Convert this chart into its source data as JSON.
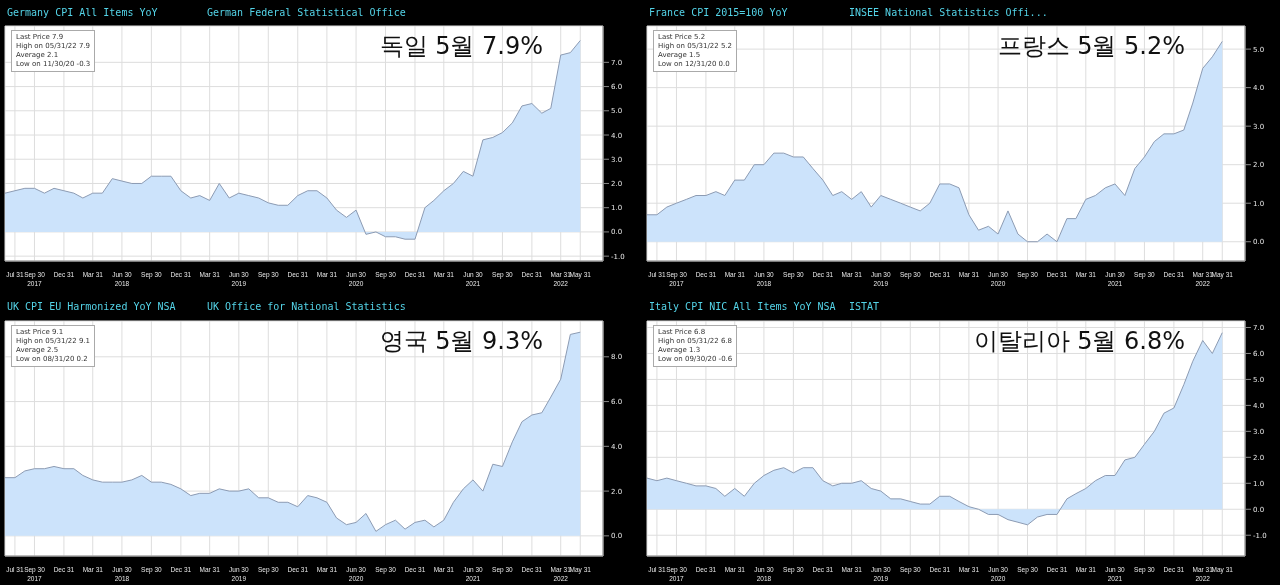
{
  "chart_data": [
    {
      "type": "area",
      "title": "Germany CPI All Items YoY",
      "subtitle": "German Federal Statistical Office",
      "annotations": [
        "독일 5월 7.9%",
        "Last Price 7.9",
        "High on 05/31/22 7.9",
        "Average 2.1",
        "Low on 11/30/20 -0.3"
      ],
      "x": [
        "2017-06-30",
        "2017-07-31",
        "2017-08-31",
        "2017-09-30",
        "2017-10-31",
        "2017-11-30",
        "2017-12-31",
        "2018-01-31",
        "2018-02-28",
        "2018-03-31",
        "2018-04-30",
        "2018-05-31",
        "2018-06-30",
        "2018-07-31",
        "2018-08-31",
        "2018-09-30",
        "2018-10-31",
        "2018-11-30",
        "2018-12-31",
        "2019-01-31",
        "2019-02-28",
        "2019-03-31",
        "2019-04-30",
        "2019-05-31",
        "2019-06-30",
        "2019-07-31",
        "2019-08-31",
        "2019-09-30",
        "2019-10-31",
        "2019-11-30",
        "2019-12-31",
        "2020-01-31",
        "2020-02-29",
        "2020-03-31",
        "2020-04-30",
        "2020-05-31",
        "2020-06-30",
        "2020-07-31",
        "2020-08-31",
        "2020-09-30",
        "2020-10-31",
        "2020-11-30",
        "2020-12-31",
        "2021-01-31",
        "2021-02-28",
        "2021-03-31",
        "2021-04-30",
        "2021-05-31",
        "2021-06-30",
        "2021-07-31",
        "2021-08-31",
        "2021-09-30",
        "2021-10-31",
        "2021-11-30",
        "2021-12-31",
        "2022-01-31",
        "2022-02-28",
        "2022-03-31",
        "2022-04-30",
        "2022-05-31"
      ],
      "series": [
        {
          "color": "#cce3fb",
          "values": [
            1.6,
            1.7,
            1.8,
            1.8,
            1.6,
            1.8,
            1.7,
            1.6,
            1.4,
            1.6,
            1.6,
            2.2,
            2.1,
            2.0,
            2.0,
            2.3,
            2.3,
            2.3,
            1.7,
            1.4,
            1.5,
            1.3,
            2.0,
            1.4,
            1.6,
            1.5,
            1.4,
            1.2,
            1.1,
            1.1,
            1.5,
            1.7,
            1.7,
            1.4,
            0.9,
            0.6,
            0.9,
            -0.1,
            0.0,
            -0.2,
            -0.2,
            -0.3,
            -0.3,
            1.0,
            1.3,
            1.7,
            2.0,
            2.5,
            2.3,
            3.8,
            3.9,
            4.1,
            4.5,
            5.2,
            5.3,
            4.9,
            5.1,
            7.3,
            7.4,
            7.9
          ]
        }
      ],
      "xlim": [
        "2017-06-30",
        "2022-08-10"
      ],
      "xticks": [
        {
          "value": "2017-07-31",
          "label": "Jul 31"
        },
        {
          "value": "2017-09-30",
          "label": "Sep 30\n2017"
        },
        {
          "value": "2017-12-31",
          "label": "Dec 31"
        },
        {
          "value": "2018-03-31",
          "label": "Mar 31"
        },
        {
          "value": "2018-06-30",
          "label": "Jun 30\n2018"
        },
        {
          "value": "2018-09-30",
          "label": "Sep 30"
        },
        {
          "value": "2018-12-31",
          "label": "Dec 31"
        },
        {
          "value": "2019-03-31",
          "label": "Mar 31"
        },
        {
          "value": "2019-06-30",
          "label": "Jun 30\n2019"
        },
        {
          "value": "2019-09-30",
          "label": "Sep 30"
        },
        {
          "value": "2019-12-31",
          "label": "Dec 31"
        },
        {
          "value": "2020-03-31",
          "label": "Mar 31"
        },
        {
          "value": "2020-06-30",
          "label": "Jun 30\n2020"
        },
        {
          "value": "2020-09-30",
          "label": "Sep 30"
        },
        {
          "value": "2020-12-31",
          "label": "Dec 31"
        },
        {
          "value": "2021-03-31",
          "label": "Mar 31"
        },
        {
          "value": "2021-06-30",
          "label": "Jun 30\n2021"
        },
        {
          "value": "2021-09-30",
          "label": "Sep 30"
        },
        {
          "value": "2021-12-31",
          "label": "Dec 31"
        },
        {
          "value": "2022-03-31",
          "label": "Mar 31\n2022"
        },
        {
          "value": "2022-05-31",
          "label": "May 31"
        }
      ],
      "ylim": [
        -1.2,
        8.5
      ],
      "yticks": [
        {
          "value": -1,
          "label": "-1.0"
        },
        {
          "value": 0,
          "label": "0.0"
        },
        {
          "value": 1,
          "label": "1.0"
        },
        {
          "value": 2,
          "label": "2.0"
        },
        {
          "value": 3,
          "label": "3.0"
        },
        {
          "value": 4,
          "label": "4.0"
        },
        {
          "value": 5,
          "label": "5.0"
        },
        {
          "value": 6,
          "label": "6.0"
        },
        {
          "value": 7,
          "label": "7.0"
        }
      ],
      "grid": true
    },
    {
      "type": "area",
      "title": "France CPI 2015=100 YoY",
      "subtitle": "INSEE National Statistics Offi...",
      "annotations": [
        "프랑스 5월 5.2%",
        "Last Price 5.2",
        "High on 05/31/22 5.2",
        "Average 1.5",
        "Low on 12/31/20 0.0"
      ],
      "x": [
        "2017-06-30",
        "2017-07-31",
        "2017-08-31",
        "2017-09-30",
        "2017-10-31",
        "2017-11-30",
        "2017-12-31",
        "2018-01-31",
        "2018-02-28",
        "2018-03-31",
        "2018-04-30",
        "2018-05-31",
        "2018-06-30",
        "2018-07-31",
        "2018-08-31",
        "2018-09-30",
        "2018-10-31",
        "2018-11-30",
        "2018-12-31",
        "2019-01-31",
        "2019-02-28",
        "2019-03-31",
        "2019-04-30",
        "2019-05-31",
        "2019-06-30",
        "2019-07-31",
        "2019-08-31",
        "2019-09-30",
        "2019-10-31",
        "2019-11-30",
        "2019-12-31",
        "2020-01-31",
        "2020-02-29",
        "2020-03-31",
        "2020-04-30",
        "2020-05-31",
        "2020-06-30",
        "2020-07-31",
        "2020-08-31",
        "2020-09-30",
        "2020-10-31",
        "2020-11-30",
        "2020-12-31",
        "2021-01-31",
        "2021-02-28",
        "2021-03-31",
        "2021-04-30",
        "2021-05-31",
        "2021-06-30",
        "2021-07-31",
        "2021-08-31",
        "2021-09-30",
        "2021-10-31",
        "2021-11-30",
        "2021-12-31",
        "2022-01-31",
        "2022-02-28",
        "2022-03-31",
        "2022-04-30",
        "2022-05-31"
      ],
      "series": [
        {
          "color": "#cce3fb",
          "values": [
            0.7,
            0.7,
            0.9,
            1.0,
            1.1,
            1.2,
            1.2,
            1.3,
            1.2,
            1.6,
            1.6,
            2.0,
            2.0,
            2.3,
            2.3,
            2.2,
            2.2,
            1.9,
            1.6,
            1.2,
            1.3,
            1.1,
            1.3,
            0.9,
            1.2,
            1.1,
            1.0,
            0.9,
            0.8,
            1.0,
            1.5,
            1.5,
            1.4,
            0.7,
            0.3,
            0.4,
            0.2,
            0.8,
            0.2,
            0.0,
            0.0,
            0.2,
            0.0,
            0.6,
            0.6,
            1.1,
            1.2,
            1.4,
            1.5,
            1.2,
            1.9,
            2.2,
            2.6,
            2.8,
            2.8,
            2.9,
            3.6,
            4.5,
            4.8,
            5.2
          ]
        }
      ],
      "xlim": [
        "2017-06-30",
        "2022-08-10"
      ],
      "xticks": [
        {
          "value": "2017-07-31",
          "label": "Jul 31"
        },
        {
          "value": "2017-09-30",
          "label": "Sep 30\n2017"
        },
        {
          "value": "2017-12-31",
          "label": "Dec 31"
        },
        {
          "value": "2018-03-31",
          "label": "Mar 31"
        },
        {
          "value": "2018-06-30",
          "label": "Jun 30\n2018"
        },
        {
          "value": "2018-09-30",
          "label": "Sep 30"
        },
        {
          "value": "2018-12-31",
          "label": "Dec 31"
        },
        {
          "value": "2019-03-31",
          "label": "Mar 31"
        },
        {
          "value": "2019-06-30",
          "label": "Jun 30\n2019"
        },
        {
          "value": "2019-09-30",
          "label": "Sep 30"
        },
        {
          "value": "2019-12-31",
          "label": "Dec 31"
        },
        {
          "value": "2020-03-31",
          "label": "Mar 31"
        },
        {
          "value": "2020-06-30",
          "label": "Jun 30\n2020"
        },
        {
          "value": "2020-09-30",
          "label": "Sep 30"
        },
        {
          "value": "2020-12-31",
          "label": "Dec 31"
        },
        {
          "value": "2021-03-31",
          "label": "Mar 31"
        },
        {
          "value": "2021-06-30",
          "label": "Jun 30\n2021"
        },
        {
          "value": "2021-09-30",
          "label": "Sep 30"
        },
        {
          "value": "2021-12-31",
          "label": "Dec 31"
        },
        {
          "value": "2022-03-31",
          "label": "Mar 31\n2022"
        },
        {
          "value": "2022-05-31",
          "label": "May 31"
        }
      ],
      "ylim": [
        -0.5,
        5.6
      ],
      "yticks": [
        {
          "value": 0,
          "label": "0.0"
        },
        {
          "value": 1,
          "label": "1.0"
        },
        {
          "value": 2,
          "label": "2.0"
        },
        {
          "value": 3,
          "label": "3.0"
        },
        {
          "value": 4,
          "label": "4.0"
        },
        {
          "value": 5,
          "label": "5.0"
        }
      ],
      "grid": true
    },
    {
      "type": "area",
      "title": "UK CPI EU Harmonized YoY NSA",
      "subtitle": "UK Office for National Statistics",
      "annotations": [
        "영국 5월 9.3%",
        "Last Price 9.1",
        "High on 05/31/22 9.1",
        "Average 2.5",
        "Low on 08/31/20 0.2"
      ],
      "x": [
        "2017-06-30",
        "2017-07-31",
        "2017-08-31",
        "2017-09-30",
        "2017-10-31",
        "2017-11-30",
        "2017-12-31",
        "2018-01-31",
        "2018-02-28",
        "2018-03-31",
        "2018-04-30",
        "2018-05-31",
        "2018-06-30",
        "2018-07-31",
        "2018-08-31",
        "2018-09-30",
        "2018-10-31",
        "2018-11-30",
        "2018-12-31",
        "2019-01-31",
        "2019-02-28",
        "2019-03-31",
        "2019-04-30",
        "2019-05-31",
        "2019-06-30",
        "2019-07-31",
        "2019-08-31",
        "2019-09-30",
        "2019-10-31",
        "2019-11-30",
        "2019-12-31",
        "2020-01-31",
        "2020-02-29",
        "2020-03-31",
        "2020-04-30",
        "2020-05-31",
        "2020-06-30",
        "2020-07-31",
        "2020-08-31",
        "2020-09-30",
        "2020-10-31",
        "2020-11-30",
        "2020-12-31",
        "2021-01-31",
        "2021-02-28",
        "2021-03-31",
        "2021-04-30",
        "2021-05-31",
        "2021-06-30",
        "2021-07-31",
        "2021-08-31",
        "2021-09-30",
        "2021-10-31",
        "2021-11-30",
        "2021-12-31",
        "2022-01-31",
        "2022-02-28",
        "2022-03-31",
        "2022-04-30",
        "2022-05-31"
      ],
      "series": [
        {
          "color": "#cce3fb",
          "values": [
            2.6,
            2.6,
            2.9,
            3.0,
            3.0,
            3.1,
            3.0,
            3.0,
            2.7,
            2.5,
            2.4,
            2.4,
            2.4,
            2.5,
            2.7,
            2.4,
            2.4,
            2.3,
            2.1,
            1.8,
            1.9,
            1.9,
            2.1,
            2.0,
            2.0,
            2.1,
            1.7,
            1.7,
            1.5,
            1.5,
            1.3,
            1.8,
            1.7,
            1.5,
            0.8,
            0.5,
            0.6,
            1.0,
            0.2,
            0.5,
            0.7,
            0.3,
            0.6,
            0.7,
            0.4,
            0.7,
            1.5,
            2.1,
            2.5,
            2.0,
            3.2,
            3.1,
            4.2,
            5.1,
            5.4,
            5.5,
            6.2,
            7.0,
            9.0,
            9.1
          ]
        }
      ],
      "xlim": [
        "2017-06-30",
        "2022-08-10"
      ],
      "xticks": [
        {
          "value": "2017-07-31",
          "label": "Jul 31"
        },
        {
          "value": "2017-09-30",
          "label": "Sep 30\n2017"
        },
        {
          "value": "2017-12-31",
          "label": "Dec 31"
        },
        {
          "value": "2018-03-31",
          "label": "Mar 31"
        },
        {
          "value": "2018-06-30",
          "label": "Jun 30\n2018"
        },
        {
          "value": "2018-09-30",
          "label": "Sep 30"
        },
        {
          "value": "2018-12-31",
          "label": "Dec 31"
        },
        {
          "value": "2019-03-31",
          "label": "Mar 31"
        },
        {
          "value": "2019-06-30",
          "label": "Jun 30\n2019"
        },
        {
          "value": "2019-09-30",
          "label": "Sep 30"
        },
        {
          "value": "2019-12-31",
          "label": "Dec 31"
        },
        {
          "value": "2020-03-31",
          "label": "Mar 31"
        },
        {
          "value": "2020-06-30",
          "label": "Jun 30\n2020"
        },
        {
          "value": "2020-09-30",
          "label": "Sep 30"
        },
        {
          "value": "2020-12-31",
          "label": "Dec 31"
        },
        {
          "value": "2021-03-31",
          "label": "Mar 31"
        },
        {
          "value": "2021-06-30",
          "label": "Jun 30\n2021"
        },
        {
          "value": "2021-09-30",
          "label": "Sep 30"
        },
        {
          "value": "2021-12-31",
          "label": "Dec 31"
        },
        {
          "value": "2022-03-31",
          "label": "Mar 31\n2022"
        },
        {
          "value": "2022-05-31",
          "label": "May 31"
        }
      ],
      "ylim": [
        -0.9,
        9.6
      ],
      "yticks": [
        {
          "value": 0,
          "label": "0.0"
        },
        {
          "value": 2,
          "label": "2.0"
        },
        {
          "value": 4,
          "label": "4.0"
        },
        {
          "value": 6,
          "label": "6.0"
        },
        {
          "value": 8,
          "label": "8.0"
        }
      ],
      "grid": true
    },
    {
      "type": "area",
      "title": "Italy CPI NIC All Items YoY NSA",
      "subtitle": "ISTAT",
      "annotations": [
        "이탈리아 5월 6.8%",
        "Last Price 6.8",
        "High on 05/31/22 6.8",
        "Average 1.3",
        "Low on 09/30/20 -0.6"
      ],
      "x": [
        "2017-06-30",
        "2017-07-31",
        "2017-08-31",
        "2017-09-30",
        "2017-10-31",
        "2017-11-30",
        "2017-12-31",
        "2018-01-31",
        "2018-02-28",
        "2018-03-31",
        "2018-04-30",
        "2018-05-31",
        "2018-06-30",
        "2018-07-31",
        "2018-08-31",
        "2018-09-30",
        "2018-10-31",
        "2018-11-30",
        "2018-12-31",
        "2019-01-31",
        "2019-02-28",
        "2019-03-31",
        "2019-04-30",
        "2019-05-31",
        "2019-06-30",
        "2019-07-31",
        "2019-08-31",
        "2019-09-30",
        "2019-10-31",
        "2019-11-30",
        "2019-12-31",
        "2020-01-31",
        "2020-02-29",
        "2020-03-31",
        "2020-04-30",
        "2020-05-31",
        "2020-06-30",
        "2020-07-31",
        "2020-08-31",
        "2020-09-30",
        "2020-10-31",
        "2020-11-30",
        "2020-12-31",
        "2021-01-31",
        "2021-02-28",
        "2021-03-31",
        "2021-04-30",
        "2021-05-31",
        "2021-06-30",
        "2021-07-31",
        "2021-08-31",
        "2021-09-30",
        "2021-10-31",
        "2021-11-30",
        "2021-12-31",
        "2022-01-31",
        "2022-02-28",
        "2022-03-31",
        "2022-04-30",
        "2022-05-31"
      ],
      "series": [
        {
          "color": "#cce3fb",
          "values": [
            1.2,
            1.1,
            1.2,
            1.1,
            1.0,
            0.9,
            0.9,
            0.8,
            0.5,
            0.8,
            0.5,
            1.0,
            1.3,
            1.5,
            1.6,
            1.4,
            1.6,
            1.6,
            1.1,
            0.9,
            1.0,
            1.0,
            1.1,
            0.8,
            0.7,
            0.4,
            0.4,
            0.3,
            0.2,
            0.2,
            0.5,
            0.5,
            0.3,
            0.1,
            0.0,
            -0.2,
            -0.2,
            -0.4,
            -0.5,
            -0.6,
            -0.3,
            -0.2,
            -0.2,
            0.4,
            0.6,
            0.8,
            1.1,
            1.3,
            1.3,
            1.9,
            2.0,
            2.5,
            3.0,
            3.7,
            3.9,
            4.8,
            5.7,
            6.5,
            6.0,
            6.8
          ]
        }
      ],
      "xlim": [
        "2017-06-30",
        "2022-08-10"
      ],
      "xticks": [
        {
          "value": "2017-07-31",
          "label": "Jul 31"
        },
        {
          "value": "2017-09-30",
          "label": "Sep 30\n2017"
        },
        {
          "value": "2017-12-31",
          "label": "Dec 31"
        },
        {
          "value": "2018-03-31",
          "label": "Mar 31"
        },
        {
          "value": "2018-06-30",
          "label": "Jun 30\n2018"
        },
        {
          "value": "2018-09-30",
          "label": "Sep 30"
        },
        {
          "value": "2018-12-31",
          "label": "Dec 31"
        },
        {
          "value": "2019-03-31",
          "label": "Mar 31"
        },
        {
          "value": "2019-06-30",
          "label": "Jun 30\n2019"
        },
        {
          "value": "2019-09-30",
          "label": "Sep 30"
        },
        {
          "value": "2019-12-31",
          "label": "Dec 31"
        },
        {
          "value": "2020-03-31",
          "label": "Mar 31"
        },
        {
          "value": "2020-06-30",
          "label": "Jun 30\n2020"
        },
        {
          "value": "2020-09-30",
          "label": "Sep 30"
        },
        {
          "value": "2020-12-31",
          "label": "Dec 31"
        },
        {
          "value": "2021-03-31",
          "label": "Mar 31"
        },
        {
          "value": "2021-06-30",
          "label": "Jun 30\n2021"
        },
        {
          "value": "2021-09-30",
          "label": "Sep 30"
        },
        {
          "value": "2021-12-31",
          "label": "Dec 31"
        },
        {
          "value": "2022-03-31",
          "label": "Mar 31\n2022"
        },
        {
          "value": "2022-05-31",
          "label": "May 31"
        }
      ],
      "ylim": [
        -1.8,
        7.25
      ],
      "yticks": [
        {
          "value": -1,
          "label": "-1.0"
        },
        {
          "value": 0,
          "label": "0.0"
        },
        {
          "value": 1,
          "label": "1.0"
        },
        {
          "value": 2,
          "label": "2.0"
        },
        {
          "value": 3,
          "label": "3.0"
        },
        {
          "value": 4,
          "label": "4.0"
        },
        {
          "value": 5,
          "label": "5.0"
        },
        {
          "value": 6,
          "label": "6.0"
        },
        {
          "value": 7,
          "label": "7.0"
        }
      ],
      "grid": true
    }
  ]
}
